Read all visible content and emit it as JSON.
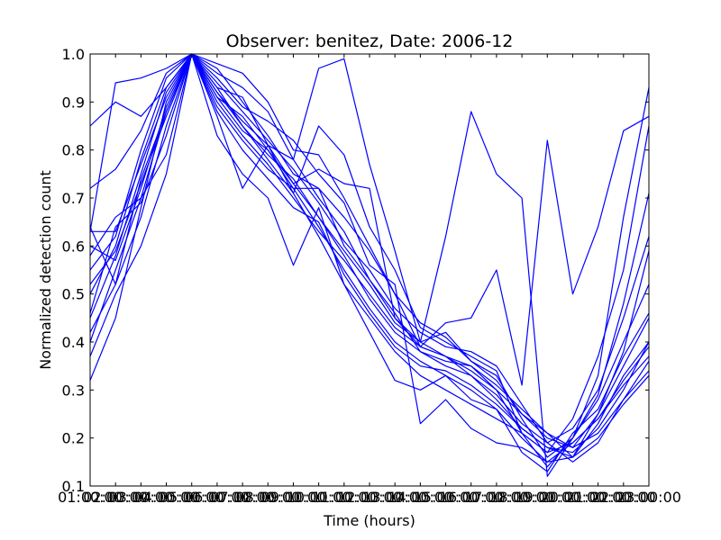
{
  "chart_data": {
    "type": "line",
    "title": "Observer: benitez, Date: 2006-12",
    "xlabel": "Time (hours)",
    "ylabel": "Normalized detection count",
    "xlim": [
      1,
      23
    ],
    "ylim": [
      0.1,
      1.0
    ],
    "x_ticks": [
      1,
      2,
      3,
      4,
      5,
      6,
      7,
      8,
      9,
      10,
      11,
      12,
      13,
      14,
      15,
      16,
      17,
      18,
      19,
      20,
      21,
      22,
      23
    ],
    "x_tick_labels": [
      "01:00:00",
      "02:00:00",
      "03:00:00",
      "04:00:00",
      "05:00:00",
      "06:00:00",
      "07:00:00",
      "08:00:00",
      "09:00:00",
      "10:00:00",
      "11:00:00",
      "12:00:00",
      "13:00:00",
      "14:00:00",
      "15:00:00",
      "16:00:00",
      "17:00:00",
      "18:00:00",
      "19:00:00",
      "20:00:00",
      "21:00:00",
      "22:00:00",
      "23:00:00"
    ],
    "y_ticks": [
      0.1,
      0.2,
      0.3,
      0.4,
      0.5,
      0.6,
      0.7,
      0.8,
      0.9,
      1.0
    ],
    "y_tick_labels": [
      "0.1",
      "0.2",
      "0.3",
      "0.4",
      "0.5",
      "0.6",
      "0.7",
      "0.8",
      "0.9",
      "1.0"
    ],
    "line_color": "#0000ff",
    "grid": false,
    "x": [
      1,
      2,
      3,
      4,
      5,
      6,
      7,
      8,
      9,
      10,
      11,
      12,
      13,
      14,
      15,
      16,
      17,
      18,
      19,
      20,
      21,
      22,
      23
    ],
    "series": [
      {
        "values": [
          0.32,
          0.45,
          0.68,
          0.9,
          1.0,
          0.92,
          0.85,
          0.78,
          0.71,
          0.62,
          0.52,
          0.45,
          0.38,
          0.33,
          0.3,
          0.27,
          0.24,
          0.21,
          0.17,
          0.19,
          0.24,
          0.31,
          0.37
        ]
      },
      {
        "values": [
          0.4,
          0.55,
          0.7,
          0.88,
          1.0,
          0.89,
          0.82,
          0.76,
          0.72,
          0.64,
          0.55,
          0.47,
          0.4,
          0.36,
          0.33,
          0.3,
          0.26,
          0.2,
          0.15,
          0.16,
          0.25,
          0.35,
          0.45
        ]
      },
      {
        "values": [
          0.45,
          0.58,
          0.75,
          0.92,
          1.0,
          0.93,
          0.85,
          0.79,
          0.74,
          0.66,
          0.58,
          0.49,
          0.42,
          0.38,
          0.35,
          0.33,
          0.28,
          0.22,
          0.18,
          0.17,
          0.22,
          0.3,
          0.4
        ]
      },
      {
        "values": [
          0.5,
          0.6,
          0.78,
          0.93,
          1.0,
          0.9,
          0.83,
          0.77,
          0.7,
          0.63,
          0.57,
          0.5,
          0.43,
          0.39,
          0.37,
          0.34,
          0.3,
          0.25,
          0.2,
          0.18,
          0.21,
          0.28,
          0.36
        ]
      },
      {
        "values": [
          0.55,
          0.62,
          0.8,
          0.95,
          1.0,
          0.91,
          0.84,
          0.8,
          0.73,
          0.66,
          0.59,
          0.52,
          0.44,
          0.4,
          0.42,
          0.36,
          0.33,
          0.24,
          0.16,
          0.2,
          0.28,
          0.4,
          0.52
        ]
      },
      {
        "values": [
          0.6,
          0.57,
          0.72,
          0.89,
          1.0,
          0.94,
          0.88,
          0.82,
          0.76,
          0.69,
          0.61,
          0.55,
          0.47,
          0.42,
          0.39,
          0.38,
          0.35,
          0.27,
          0.19,
          0.15,
          0.19,
          0.28,
          0.34
        ]
      },
      {
        "values": [
          0.64,
          0.52,
          0.66,
          0.85,
          1.0,
          0.92,
          0.86,
          0.81,
          0.78,
          0.7,
          0.63,
          0.53,
          0.46,
          0.38,
          0.36,
          0.35,
          0.31,
          0.26,
          0.21,
          0.16,
          0.23,
          0.33,
          0.4
        ]
      },
      {
        "values": [
          0.72,
          0.76,
          0.84,
          0.96,
          1.0,
          0.97,
          0.9,
          0.83,
          0.75,
          0.72,
          0.6,
          0.53,
          0.45,
          0.4,
          0.37,
          0.33,
          0.29,
          0.23,
          0.19,
          0.22,
          0.3,
          0.45,
          0.62
        ]
      },
      {
        "values": [
          0.85,
          0.9,
          0.87,
          0.93,
          1.0,
          0.88,
          0.8,
          0.74,
          0.68,
          0.65,
          0.54,
          0.46,
          0.39,
          0.35,
          0.34,
          0.31,
          0.27,
          0.22,
          0.18,
          0.16,
          0.2,
          0.27,
          0.33
        ]
      },
      {
        "values": [
          0.63,
          0.94,
          0.95,
          0.97,
          1.0,
          0.98,
          0.96,
          0.9,
          0.8,
          0.79,
          0.7,
          0.6,
          0.5,
          0.44,
          0.41,
          0.36,
          0.32,
          0.25,
          0.21,
          0.18,
          0.25,
          0.38,
          0.59
        ]
      },
      {
        "values": [
          0.52,
          0.59,
          0.73,
          0.87,
          1.0,
          0.87,
          0.72,
          0.81,
          0.71,
          0.85,
          0.79,
          0.64,
          0.55,
          0.43,
          0.4,
          0.37,
          0.34,
          0.21,
          0.14,
          0.2,
          0.29,
          0.48,
          0.71
        ]
      },
      {
        "values": [
          0.46,
          0.64,
          0.69,
          0.83,
          1.0,
          0.83,
          0.75,
          0.7,
          0.56,
          0.68,
          0.52,
          0.42,
          0.32,
          0.3,
          0.33,
          0.28,
          0.26,
          0.17,
          0.13,
          0.21,
          0.26,
          0.37,
          0.46
        ]
      },
      {
        "values": [
          0.58,
          0.66,
          0.7,
          0.79,
          1.0,
          0.95,
          0.89,
          0.86,
          0.82,
          0.75,
          0.69,
          0.56,
          0.52,
          0.23,
          0.28,
          0.22,
          0.19,
          0.18,
          0.15,
          0.19,
          0.24,
          0.32,
          0.39
        ]
      },
      {
        "values": [
          0.63,
          0.63,
          0.77,
          0.91,
          1.0,
          0.96,
          0.93,
          0.88,
          0.78,
          0.97,
          0.99,
          0.77,
          0.59,
          0.4,
          0.62,
          0.88,
          0.75,
          0.7,
          0.12,
          0.2,
          0.33,
          0.66,
          0.93
        ]
      },
      {
        "values": [
          0.42,
          0.52,
          0.74,
          0.88,
          1.0,
          0.93,
          0.91,
          0.81,
          0.73,
          0.76,
          0.73,
          0.72,
          0.45,
          0.39,
          0.44,
          0.45,
          0.55,
          0.31,
          0.82,
          0.5,
          0.64,
          0.84,
          0.87
        ]
      },
      {
        "values": [
          0.37,
          0.5,
          0.6,
          0.75,
          1.0,
          0.91,
          0.87,
          0.8,
          0.72,
          0.72,
          0.66,
          0.59,
          0.5,
          0.39,
          0.37,
          0.35,
          0.3,
          0.21,
          0.17,
          0.24,
          0.37,
          0.55,
          0.85
        ]
      }
    ]
  }
}
